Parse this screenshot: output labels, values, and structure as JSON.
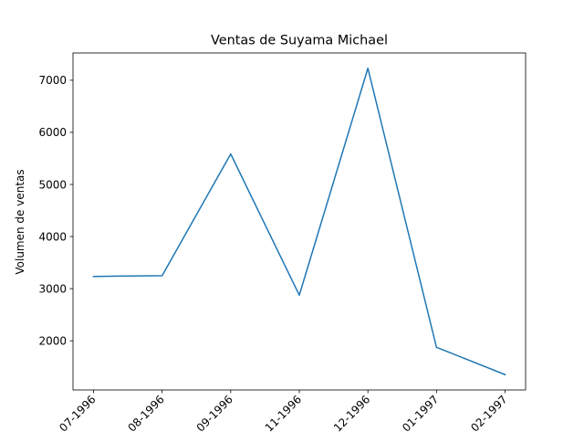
{
  "chart_data": {
    "type": "line",
    "title": "Ventas de Suyama Michael",
    "xlabel": "",
    "ylabel": "Volumen de ventas",
    "categories": [
      "07-1996",
      "08-1996",
      "09-1996",
      "11-1996",
      "12-1996",
      "01-1997",
      "02-1997"
    ],
    "series": [
      {
        "values": [
          3235,
          3250,
          5585,
          2875,
          7230,
          1875,
          1350
        ],
        "color": "#1f77b4"
      }
    ],
    "yticks": [
      2000,
      3000,
      4000,
      5000,
      6000,
      7000
    ],
    "ylim": [
      1056,
      7524
    ],
    "grid": false,
    "legend": "none",
    "xtick_rotation": 45
  }
}
